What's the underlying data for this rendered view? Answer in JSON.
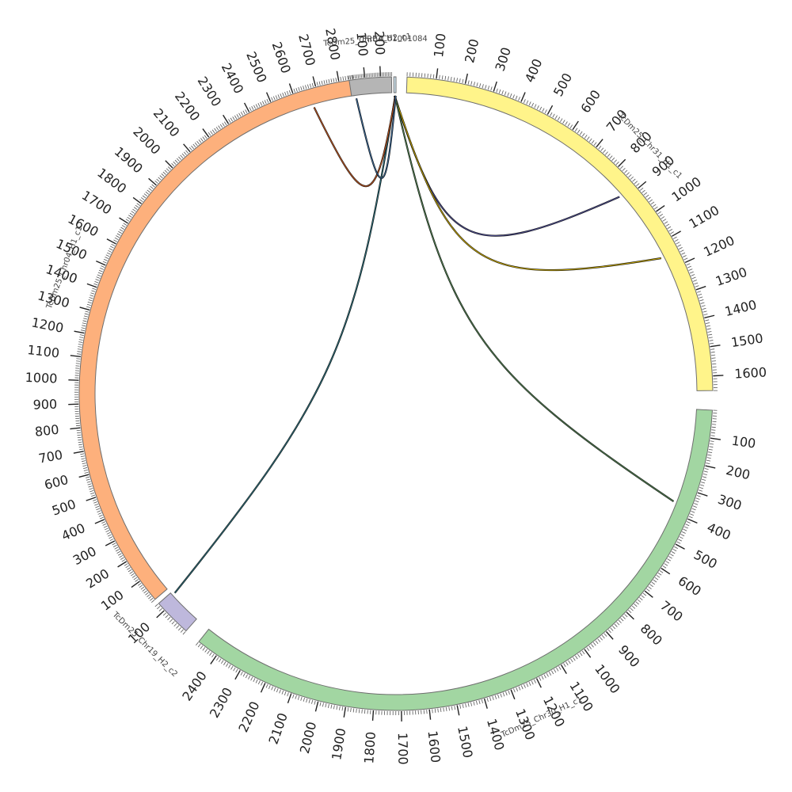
{
  "chart_data": {
    "type": "circos",
    "title": "",
    "segments": [
      {
        "id": "chr31",
        "name": "TcDm25_Chr31_H1_c1",
        "length": 1650,
        "color": "#fff48a",
        "tick_start": 100,
        "tick_step": 100
      },
      {
        "id": "chr30",
        "name": "TcDm25_Chr30_H1_c1",
        "length": 2480,
        "color": "#a2d6a2",
        "tick_start": 100,
        "tick_step": 100
      },
      {
        "id": "chr19",
        "name": "TcDm25_Chr19_H2_c2",
        "length": 130,
        "color": "#beb8dc",
        "tick_start": 100,
        "tick_step": 100
      },
      {
        "id": "chr04h1",
        "name": "TcDm25_Chr04_H1_c1",
        "length": 2860,
        "color": "#fdb07c",
        "tick_start": 100,
        "tick_step": 100
      },
      {
        "id": "chr04h2",
        "name": "TcDm25_Chr04_H2_c1",
        "length": 270,
        "color": "#b5b5b5",
        "tick_start": 100,
        "tick_step": 100
      },
      {
        "id": "pretc",
        "name": "PRETC01001084",
        "length": 8,
        "color": "#d0e6f2",
        "tick_start": 0,
        "tick_step": 100
      }
    ],
    "links": [
      {
        "from": "pretc",
        "from_pos": 2,
        "to": "chr31",
        "to_pos": 880,
        "color": "#4a4a8a"
      },
      {
        "from": "pretc",
        "from_pos": 3,
        "to": "chr31",
        "to_pos": 1150,
        "color": "#c9a800"
      },
      {
        "from": "pretc",
        "from_pos": 4,
        "to": "chr30",
        "to_pos": 360,
        "color": "#4f7f4f"
      },
      {
        "from": "pretc",
        "from_pos": 5,
        "to": "chr19",
        "to_pos": 120,
        "color": "#2c6e7a"
      },
      {
        "from": "pretc",
        "from_pos": 6,
        "to": "chr04h1",
        "to_pos": 2670,
        "color": "#c0551e"
      },
      {
        "from": "pretc",
        "from_pos": 7,
        "to": "chr04h2",
        "to_pos": 30,
        "color": "#3a6a9a"
      }
    ]
  }
}
